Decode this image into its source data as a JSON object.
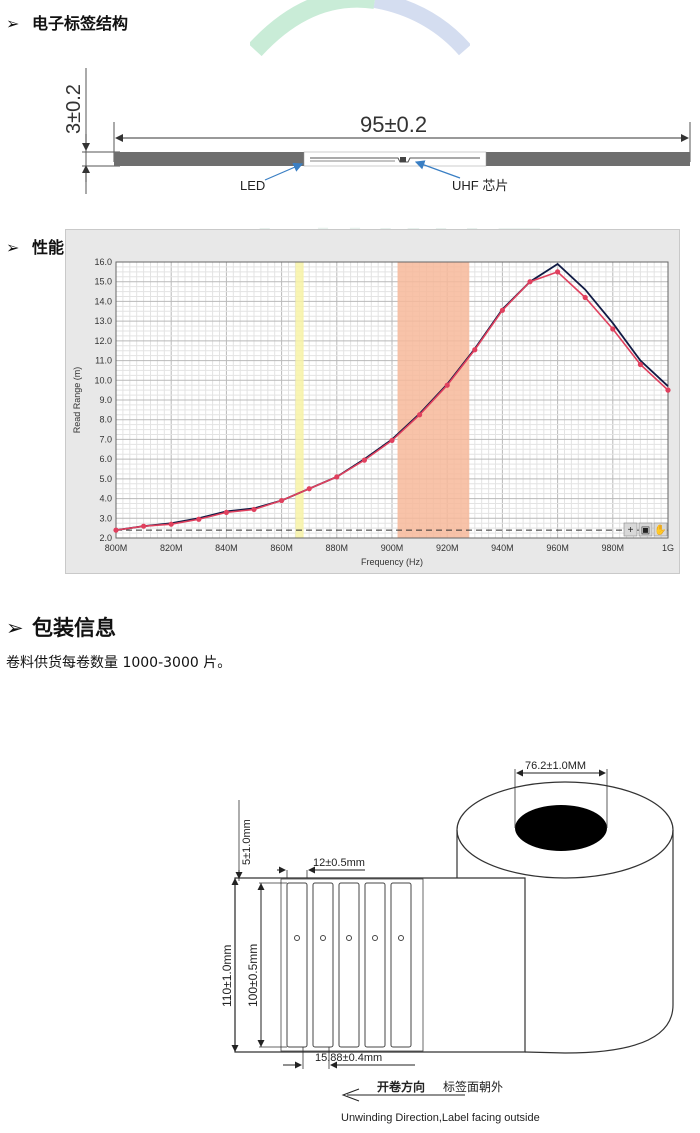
{
  "section1": {
    "marker": "➢",
    "title": "电子标签结构"
  },
  "structure": {
    "height_dim": "3±0.2",
    "width_dim": "95±0.2",
    "led_label": "LED",
    "uhf_label": "UHF  芯片"
  },
  "section2": {
    "marker": "➢",
    "title": "性能曲线测试图"
  },
  "chart_data": {
    "type": "line",
    "xlabel": "Frequency (Hz)",
    "ylabel": "Read Range (m)",
    "x_tick_labels": [
      "800M",
      "820M",
      "840M",
      "860M",
      "880M",
      "900M",
      "920M",
      "940M",
      "960M",
      "980M",
      "1G"
    ],
    "y_tick_labels": [
      "2.0",
      "3.0",
      "4.0",
      "5.0",
      "6.0",
      "7.0",
      "8.0",
      "9.0",
      "10.0",
      "11.0",
      "12.0",
      "13.0",
      "14.0",
      "15.0",
      "16.0"
    ],
    "xlim": [
      800,
      1000
    ],
    "ylim": [
      2.0,
      16.0
    ],
    "grid": true,
    "bands": [
      {
        "from": 865,
        "to": 868,
        "color": "#f8f3a6"
      },
      {
        "from": 902,
        "to": 928,
        "color": "#f7b89a"
      }
    ],
    "threshold": 2.4,
    "series": [
      {
        "color": "#101a44",
        "marker": "none",
        "x": [
          800,
          810,
          820,
          830,
          840,
          850,
          860,
          870,
          880,
          890,
          900,
          910,
          920,
          930,
          940,
          950,
          960,
          970,
          980,
          990,
          1000
        ],
        "y": [
          2.4,
          2.6,
          2.75,
          3.0,
          3.35,
          3.5,
          3.9,
          4.5,
          5.1,
          6.0,
          7.0,
          8.3,
          9.8,
          11.6,
          13.6,
          15.0,
          15.9,
          14.6,
          12.9,
          11.0,
          9.7
        ]
      },
      {
        "color": "#e0405e",
        "marker": "circle",
        "x": [
          800,
          810,
          820,
          830,
          840,
          850,
          860,
          870,
          880,
          890,
          900,
          910,
          920,
          930,
          940,
          950,
          960,
          970,
          980,
          990,
          1000
        ],
        "y": [
          2.4,
          2.6,
          2.7,
          2.95,
          3.3,
          3.45,
          3.9,
          4.5,
          5.1,
          5.95,
          6.95,
          8.25,
          9.75,
          11.55,
          13.55,
          15.0,
          15.5,
          14.2,
          12.6,
          10.8,
          9.5
        ]
      }
    ],
    "toolbar_icons": [
      "zoom-in-icon",
      "zoom-box-icon",
      "pan-hand-icon"
    ]
  },
  "section3": {
    "marker": "➢",
    "title": "包装信息"
  },
  "packaging_text": "卷料供货每卷数量 1000-3000 片。",
  "roll": {
    "core_dim": "76.2±1.0MM",
    "margin_dim": "5±1.0mm",
    "label_width_dim": "12±0.5mm",
    "roll_width_dim": "110±1.0mm",
    "label_length_dim": "100±0.5mm",
    "pitch_dim": "15.88±0.4mm",
    "direction_cn_bold": "开卷方向",
    "direction_cn": "标签面朝外",
    "direction_en": "Unwinding Direction,Label facing outside"
  },
  "watermark": {
    "text": "LUWIT",
    "color": "#cfeedd"
  }
}
